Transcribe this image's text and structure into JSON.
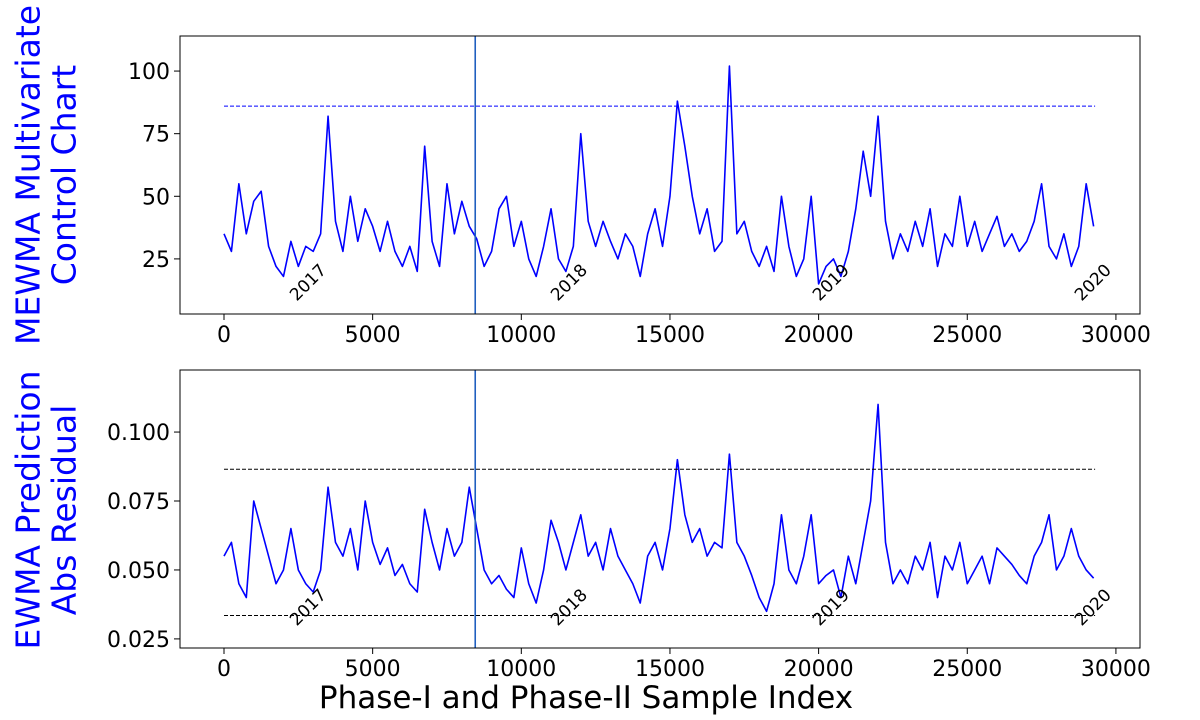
{
  "chart_data": [
    {
      "type": "line",
      "ylabel": [
        "MEWMA Multivariate",
        "Control Chart"
      ],
      "color": "#0000ff",
      "x": [
        0,
        250,
        500,
        750,
        1000,
        1250,
        1500,
        1750,
        2000,
        2250,
        2500,
        2750,
        3000,
        3250,
        3500,
        3750,
        4000,
        4250,
        4500,
        4750,
        5000,
        5250,
        5500,
        5750,
        6000,
        6250,
        6500,
        6750,
        7000,
        7250,
        7500,
        7750,
        8000,
        8250,
        8500,
        8750,
        9000,
        9250,
        9500,
        9750,
        10000,
        10250,
        10500,
        10750,
        11000,
        11250,
        11500,
        11750,
        12000,
        12250,
        12500,
        12750,
        13000,
        13250,
        13500,
        13750,
        14000,
        14250,
        14500,
        14750,
        15000,
        15250,
        15500,
        15750,
        16000,
        16250,
        16500,
        16750,
        17000,
        17250,
        17500,
        17750,
        18000,
        18250,
        18500,
        18750,
        19000,
        19250,
        19500,
        19750,
        20000,
        20250,
        20500,
        20750,
        21000,
        21250,
        21500,
        21750,
        22000,
        22250,
        22500,
        22750,
        23000,
        23250,
        23500,
        23750,
        24000,
        24250,
        24500,
        24750,
        25000,
        25250,
        25500,
        25750,
        26000,
        26250,
        26500,
        26750,
        27000,
        27250,
        27500,
        27750,
        28000,
        28250,
        28500,
        28750,
        29000,
        29250
      ],
      "values": [
        35,
        28,
        55,
        35,
        48,
        52,
        30,
        22,
        18,
        32,
        22,
        30,
        28,
        35,
        82,
        40,
        28,
        50,
        32,
        45,
        38,
        28,
        40,
        28,
        22,
        30,
        20,
        70,
        32,
        22,
        55,
        35,
        48,
        38,
        33,
        22,
        28,
        45,
        50,
        30,
        40,
        25,
        18,
        30,
        45,
        25,
        20,
        30,
        75,
        40,
        30,
        40,
        32,
        25,
        35,
        30,
        18,
        35,
        45,
        30,
        50,
        88,
        70,
        50,
        35,
        45,
        28,
        32,
        102,
        35,
        40,
        28,
        22,
        30,
        20,
        50,
        30,
        18,
        25,
        50,
        15,
        22,
        25,
        18,
        28,
        45,
        68,
        50,
        82,
        40,
        25,
        35,
        28,
        40,
        30,
        45,
        22,
        35,
        30,
        50,
        30,
        40,
        28,
        35,
        42,
        30,
        35,
        28,
        32,
        40,
        55,
        30,
        25,
        35,
        22,
        30,
        55,
        38
      ],
      "xlim": [
        -1480,
        30810
      ],
      "xticks": [
        0,
        5000,
        10000,
        15000,
        20000,
        25000,
        30000
      ],
      "ylim": [
        3,
        114
      ],
      "yticks": [
        25,
        50,
        75,
        100
      ],
      "hlines": [
        {
          "y": 86,
          "xmin": 0,
          "xmax": 29300,
          "color": "#0000ff",
          "style": "dashed"
        }
      ],
      "vline": {
        "x": 8450,
        "color": "#1f5fbf"
      },
      "annotations": [
        {
          "text": "2017",
          "x": 2960,
          "y": 14
        },
        {
          "text": "2018",
          "x": 11740,
          "y": 14
        },
        {
          "text": "2019",
          "x": 20550,
          "y": 14
        },
        {
          "text": "2020",
          "x": 29360,
          "y": 14
        }
      ]
    },
    {
      "type": "line",
      "ylabel": [
        "EWMA Prediction",
        "Abs Residual"
      ],
      "xlabel": "Phase-I and Phase-II Sample Index",
      "color": "#0000ff",
      "x": [
        0,
        250,
        500,
        750,
        1000,
        1250,
        1500,
        1750,
        2000,
        2250,
        2500,
        2750,
        3000,
        3250,
        3500,
        3750,
        4000,
        4250,
        4500,
        4750,
        5000,
        5250,
        5500,
        5750,
        6000,
        6250,
        6500,
        6750,
        7000,
        7250,
        7500,
        7750,
        8000,
        8250,
        8500,
        8750,
        9000,
        9250,
        9500,
        9750,
        10000,
        10250,
        10500,
        10750,
        11000,
        11250,
        11500,
        11750,
        12000,
        12250,
        12500,
        12750,
        13000,
        13250,
        13500,
        13750,
        14000,
        14250,
        14500,
        14750,
        15000,
        15250,
        15500,
        15750,
        16000,
        16250,
        16500,
        16750,
        17000,
        17250,
        17500,
        17750,
        18000,
        18250,
        18500,
        18750,
        19000,
        19250,
        19500,
        19750,
        20000,
        20250,
        20500,
        20750,
        21000,
        21250,
        21500,
        21750,
        22000,
        22250,
        22500,
        22750,
        23000,
        23250,
        23500,
        23750,
        24000,
        24250,
        24500,
        24750,
        25000,
        25250,
        25500,
        25750,
        26000,
        26250,
        26500,
        26750,
        27000,
        27250,
        27500,
        27750,
        28000,
        28250,
        28500,
        28750,
        29000,
        29250
      ],
      "values": [
        0.055,
        0.06,
        0.045,
        0.04,
        0.075,
        0.065,
        0.055,
        0.045,
        0.05,
        0.065,
        0.05,
        0.045,
        0.042,
        0.05,
        0.08,
        0.06,
        0.055,
        0.065,
        0.05,
        0.075,
        0.06,
        0.052,
        0.058,
        0.048,
        0.052,
        0.045,
        0.042,
        0.072,
        0.06,
        0.05,
        0.065,
        0.055,
        0.06,
        0.08,
        0.065,
        0.05,
        0.045,
        0.048,
        0.043,
        0.04,
        0.058,
        0.045,
        0.038,
        0.05,
        0.068,
        0.06,
        0.05,
        0.06,
        0.07,
        0.055,
        0.06,
        0.05,
        0.065,
        0.055,
        0.05,
        0.045,
        0.038,
        0.055,
        0.06,
        0.05,
        0.065,
        0.09,
        0.07,
        0.06,
        0.065,
        0.055,
        0.06,
        0.058,
        0.092,
        0.06,
        0.055,
        0.048,
        0.04,
        0.035,
        0.045,
        0.07,
        0.05,
        0.045,
        0.055,
        0.07,
        0.045,
        0.048,
        0.05,
        0.04,
        0.055,
        0.045,
        0.06,
        0.075,
        0.11,
        0.06,
        0.045,
        0.05,
        0.045,
        0.055,
        0.05,
        0.06,
        0.04,
        0.055,
        0.05,
        0.06,
        0.045,
        0.05,
        0.055,
        0.045,
        0.058,
        0.055,
        0.052,
        0.048,
        0.045,
        0.055,
        0.06,
        0.07,
        0.05,
        0.055,
        0.065,
        0.055,
        0.05,
        0.047
      ],
      "xlim": [
        -1480,
        30810
      ],
      "xticks": [
        0,
        5000,
        10000,
        15000,
        20000,
        25000,
        30000
      ],
      "ylim": [
        0.0217,
        0.1225
      ],
      "yticks": [
        0.025,
        {
          "value": 0.05,
          "label": "0.050"
        },
        0.075,
        {
          "value": 0.1,
          "label": "0.100"
        }
      ],
      "hlines": [
        {
          "y": 0.0865,
          "xmin": 0,
          "xmax": 29300,
          "color": "#000000",
          "style": "dashed"
        },
        {
          "y": 0.0335,
          "xmin": 0,
          "xmax": 29300,
          "color": "#000000",
          "style": "dashed"
        }
      ],
      "vline": {
        "x": 8450,
        "color": "#1f5fbf"
      },
      "annotations": [
        {
          "text": "2017",
          "x": 2960,
          "y": 0.035
        },
        {
          "text": "2018",
          "x": 11740,
          "y": 0.035
        },
        {
          "text": "2019",
          "x": 20550,
          "y": 0.035
        },
        {
          "text": "2020",
          "x": 29360,
          "y": 0.035
        }
      ]
    }
  ]
}
